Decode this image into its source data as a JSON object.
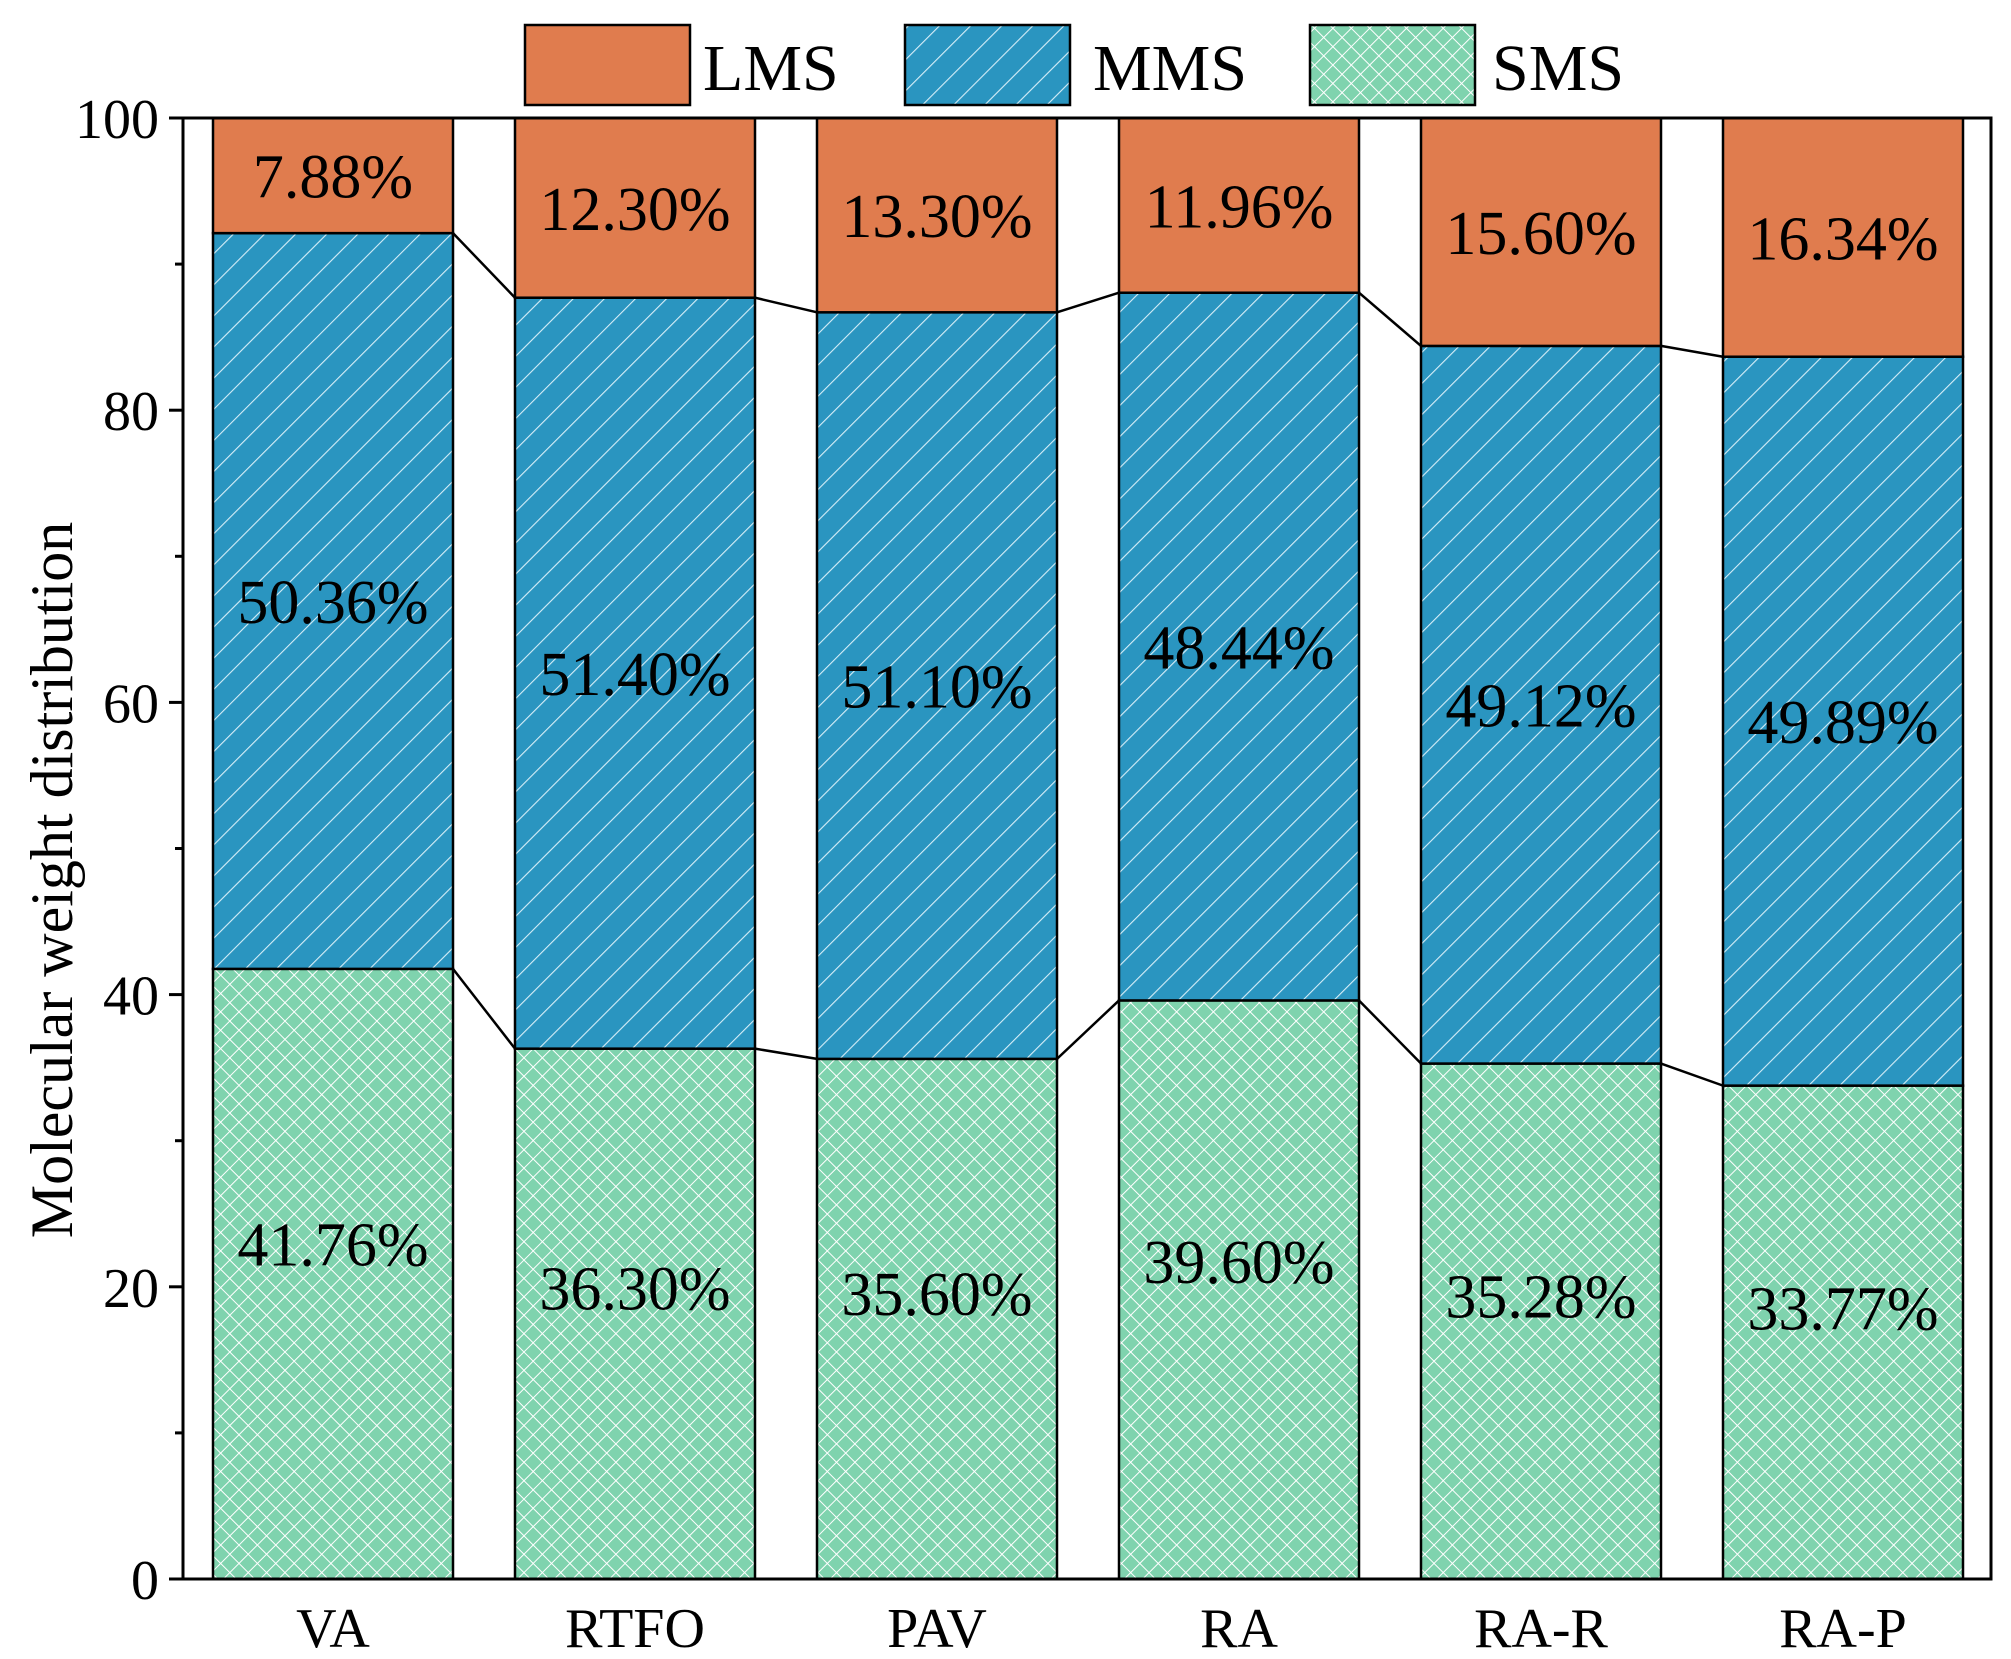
{
  "chart_data": {
    "type": "bar",
    "stacked": true,
    "title": "",
    "xlabel": "",
    "ylabel": "Molecular weight distribution",
    "ylim": [
      0,
      100
    ],
    "yticks": [
      "0",
      "20",
      "40",
      "60",
      "80",
      "100"
    ],
    "categories": [
      "VA",
      "RTFO",
      "PAV",
      "RA",
      "RA-R",
      "RA-P"
    ],
    "series": [
      {
        "name": "SMS",
        "color": "#7fd3ae",
        "pattern": "crosshatch",
        "values": [
          41.76,
          36.3,
          35.6,
          39.6,
          35.28,
          33.77
        ],
        "labels": [
          "41.76%",
          "36.30%",
          "35.60%",
          "39.60%",
          "35.28%",
          "33.77%"
        ]
      },
      {
        "name": "MMS",
        "color": "#2a95c0",
        "pattern": "diagonal",
        "values": [
          50.36,
          51.4,
          51.1,
          48.44,
          49.12,
          49.89
        ],
        "labels": [
          "50.36%",
          "51.40%",
          "51.10%",
          "48.44%",
          "49.12%",
          "49.89%"
        ]
      },
      {
        "name": "LMS",
        "color": "#e07c4e",
        "pattern": "solid",
        "values": [
          7.88,
          12.3,
          13.3,
          11.96,
          15.6,
          16.34
        ],
        "labels": [
          "7.88%",
          "12.30%",
          "13.30%",
          "11.96%",
          "15.60%",
          "16.34%"
        ]
      }
    ],
    "legend": {
      "placement": "top",
      "order": [
        "LMS",
        "MMS",
        "SMS"
      ]
    }
  }
}
